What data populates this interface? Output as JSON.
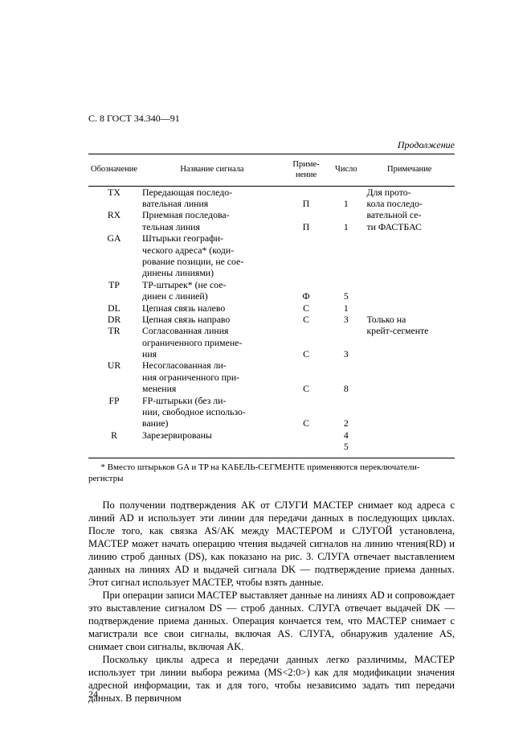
{
  "document_header": "С. 8 ГОСТ 34.340—91",
  "continuation": "Продолжение",
  "table": {
    "headers": [
      "Обозначение",
      "Название сигнала",
      "Приме-\nнение",
      "Число",
      "Примечание"
    ],
    "rows": [
      {
        "obs": "TX",
        "name": "    Передающая последо-\nвательная линия",
        "pr": "П",
        "num": "1",
        "note_top": "    Для прото-\nкола последо-"
      },
      {
        "obs": "RX",
        "name": "    Приемная последова-\nтельная линия",
        "pr": "П",
        "num": "1",
        "note_top": "вательной се-\nти ФАСТБАС"
      },
      {
        "obs": "GA",
        "name": "    Штырьки географи-\nческого адреса* (коди-\nрование позиции, не сое-\nдинены линиями)",
        "pr": "",
        "num": "",
        "note_top": ""
      },
      {
        "obs": "TP",
        "name": "    TP-штырек* (не сое-\nдинен с линией)",
        "pr": "Ф",
        "num": "5",
        "note_top": ""
      },
      {
        "obs": "DL",
        "name": "    Цепная связь налево",
        "pr": "С",
        "num": "1",
        "note_top": ""
      },
      {
        "obs": "DR",
        "name": "    Цепная связь направо",
        "pr": "С",
        "num": "3",
        "note_top": "    Только на"
      },
      {
        "obs": "TR",
        "name": "    Согласованная линия\nограниченного примене-\nния",
        "pr": "С",
        "num": "3",
        "note_top": "крейт-сегменте"
      },
      {
        "obs": "UR",
        "name": "    Несогласованная ли-\nния ограниченного при-\nменения",
        "pr": "С",
        "num": "8",
        "note_top": ""
      },
      {
        "obs": "FP",
        "name": "    FP-штырьки (без ли-\nнии, свободное использо-\nвание)",
        "pr": "С",
        "num": "2",
        "note_top": ""
      },
      {
        "obs": "R",
        "name": "    Зарезервированы",
        "pr": "",
        "num": "4\n5",
        "note_top": ""
      }
    ]
  },
  "footnote": "* Вместо штырьков GA и TP на КАБЕЛЬ-СЕГМЕНТЕ применяются переключатели-регистры",
  "paragraphs": [
    "По получении подтверждения AK от СЛУГИ МАСТЕР снимает код адреса с линий AD и использует эти линии для передачи данных в последующих циклах. После того, как связка AS/AK между МАСТЕРОМ и СЛУГОЙ установлена, МАСТЕР может начать операцию чтения выдачей сигналов на линию чтения(RD) и линию строб данных (DS), как показано на рис. 3. СЛУГА отвечает выставлением данных на линиях AD и выдачей сигнала DK — подтверждение приема данных. Этот сигнал использует МАСТЕР, чтобы взять данные.",
    "При операции записи МАСТЕР выставляет данные на линиях AD и сопровождает это выставление сигналом DS — строб данных. СЛУГА отвечает выдачей DK — подтверждение приема данных. Операция кончается тем, что МАСТЕР снимает с магистрали все свои сигналы, включая AS. СЛУГА, обнаружив удаление AS, снимает свои сигналы, включая AK.",
    "Поскольку циклы адреса и передачи данных легко различимы, МАСТЕР использует три линии выбора режима (MS<2:0>) как для модификации значения адресной информации, так и для того, чтобы независимо задать тип передачи данных. В первичном"
  ],
  "page_number": "24"
}
